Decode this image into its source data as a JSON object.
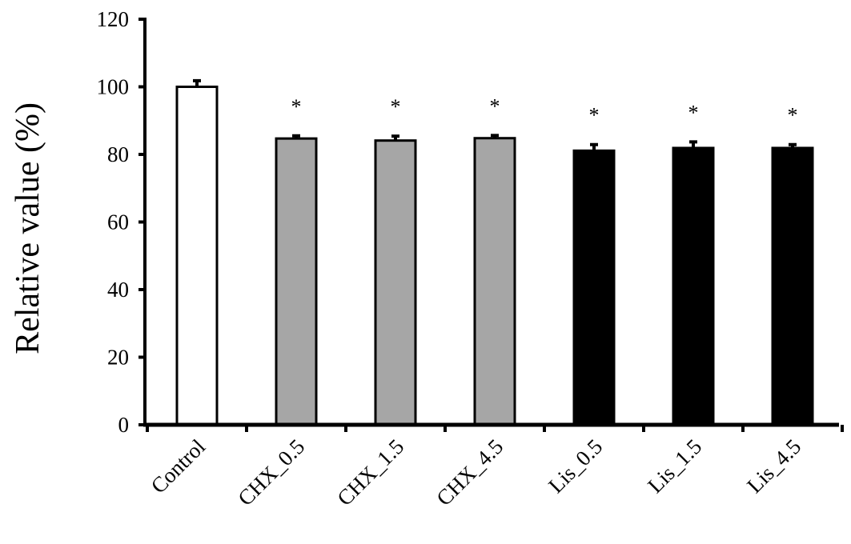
{
  "chart_data": {
    "type": "bar",
    "categories": [
      "Control",
      "CHX_0.5",
      "CHX_1.5",
      "CHX_4.5",
      "Lis_0.5",
      "Lis_1.5",
      "Lis_4.5"
    ],
    "values": [
      100.0,
      84.7,
      84.1,
      84.8,
      81.1,
      81.9,
      81.9
    ],
    "errors": [
      1.8,
      0.8,
      1.3,
      0.8,
      1.8,
      1.8,
      1.0
    ],
    "significance": [
      "",
      "*",
      "*",
      "*",
      "*",
      "*",
      "*"
    ],
    "bar_colors": [
      "#ffffff",
      "#a6a6a6",
      "#a6a6a6",
      "#a6a6a6",
      "#000000",
      "#000000",
      "#000000"
    ],
    "bar_edge_color": "#000000",
    "title": "",
    "xlabel": "",
    "ylabel": "Relative value (%)",
    "ylim": [
      0,
      120
    ],
    "yticks": [
      "0",
      "20",
      "40",
      "60",
      "80",
      "100",
      "120"
    ],
    "grid": false,
    "legend": "none"
  }
}
